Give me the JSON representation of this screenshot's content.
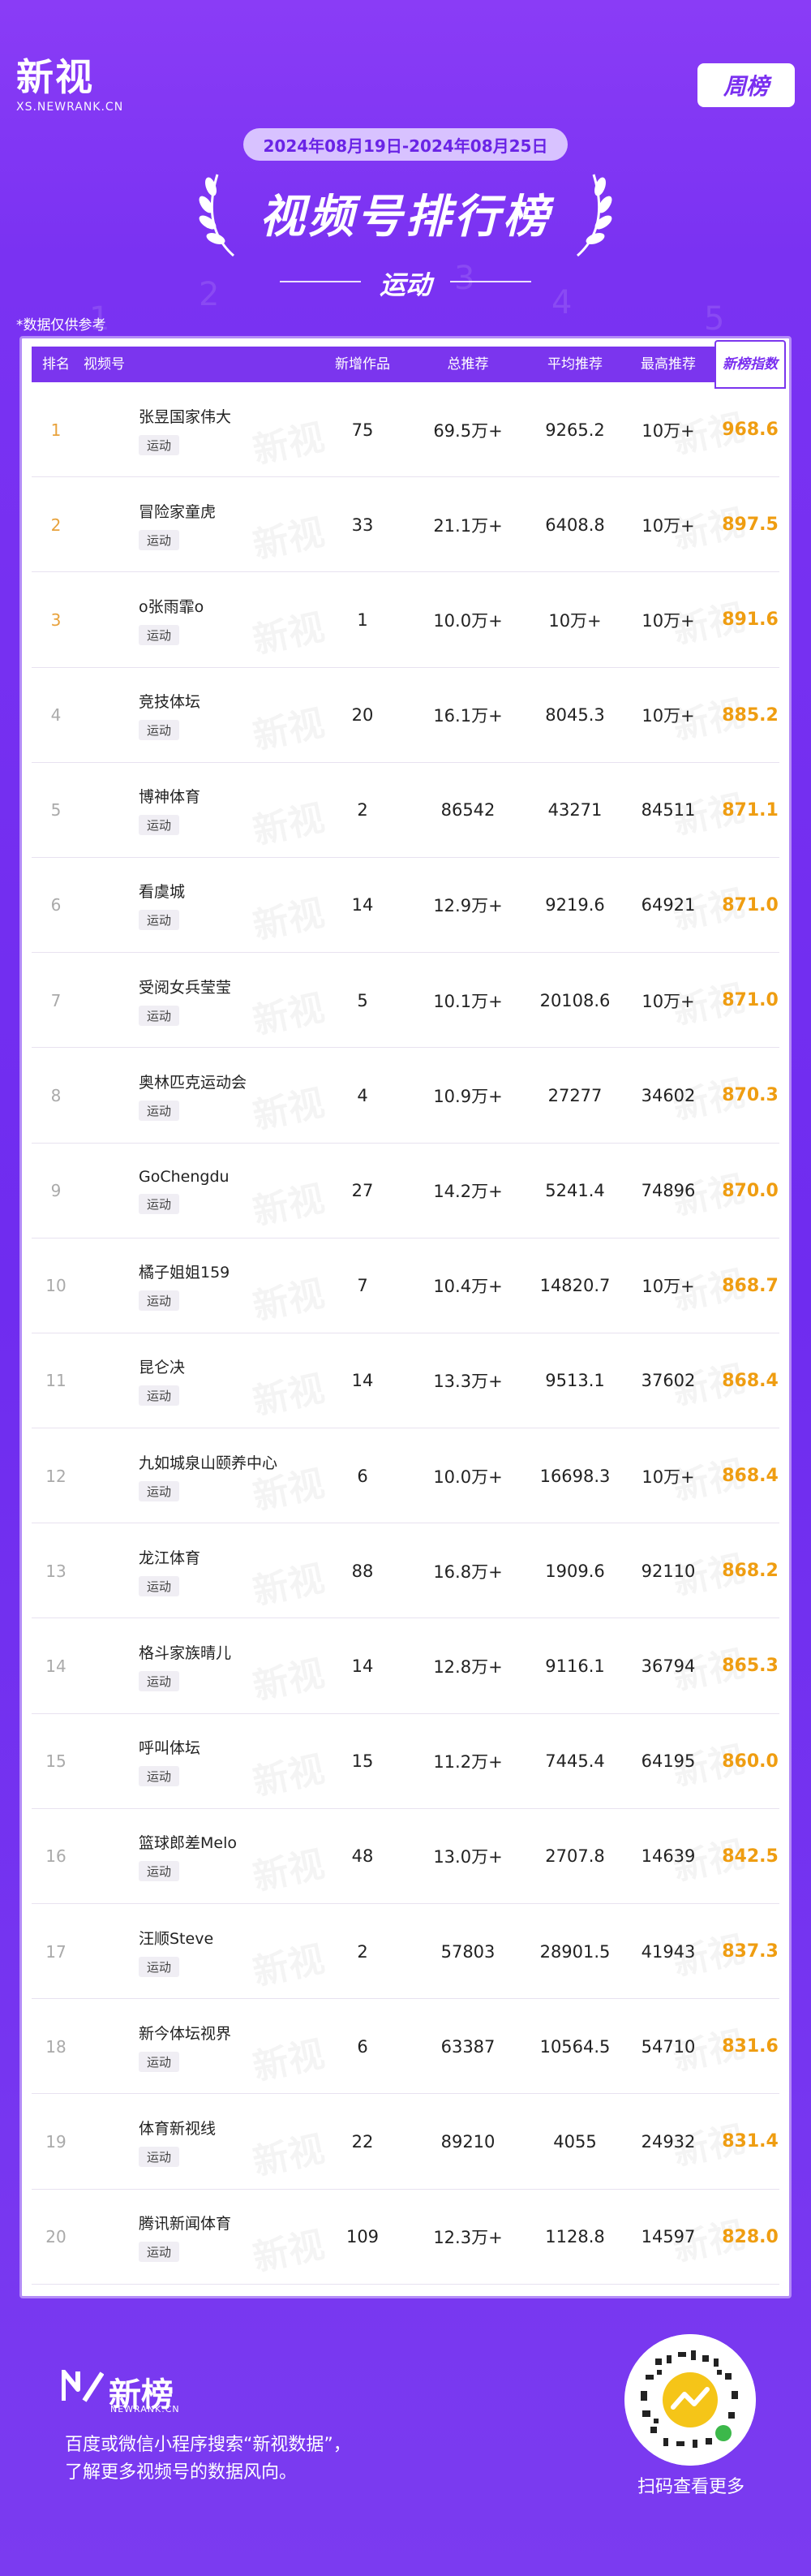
{
  "brand": {
    "logo_cn": "新视",
    "logo_en": "XS.NEWRANK.CN",
    "weekly_tag": "周榜"
  },
  "header": {
    "date_range": "2024年08月19日-2024年08月25日",
    "title": "视频号排行榜",
    "category": "运动",
    "note": "*数据仅供参考"
  },
  "table": {
    "columns": {
      "rank": "排名",
      "account": "视频号",
      "new_works": "新增作品",
      "total_rec": "总推荐",
      "avg_rec": "平均推荐",
      "max_rec": "最高推荐",
      "score": "新榜指数"
    },
    "watermark": "新视",
    "rows": [
      {
        "rank": "1",
        "name": "张昱国家伟大",
        "tag": "运动",
        "new": "75",
        "total": "69.5万+",
        "avg": "9265.2",
        "max": "10万+",
        "score": "968.6"
      },
      {
        "rank": "2",
        "name": "冒险家童虎",
        "tag": "运动",
        "new": "33",
        "total": "21.1万+",
        "avg": "6408.8",
        "max": "10万+",
        "score": "897.5"
      },
      {
        "rank": "3",
        "name": "o张雨霏o",
        "tag": "运动",
        "new": "1",
        "total": "10.0万+",
        "avg": "10万+",
        "max": "10万+",
        "score": "891.6"
      },
      {
        "rank": "4",
        "name": "竞技体坛",
        "tag": "运动",
        "new": "20",
        "total": "16.1万+",
        "avg": "8045.3",
        "max": "10万+",
        "score": "885.2"
      },
      {
        "rank": "5",
        "name": "博神体育",
        "tag": "运动",
        "new": "2",
        "total": "86542",
        "avg": "43271",
        "max": "84511",
        "score": "871.1"
      },
      {
        "rank": "6",
        "name": "看虞城",
        "tag": "运动",
        "new": "14",
        "total": "12.9万+",
        "avg": "9219.6",
        "max": "64921",
        "score": "871.0"
      },
      {
        "rank": "7",
        "name": "受阅女兵莹莹",
        "tag": "运动",
        "new": "5",
        "total": "10.1万+",
        "avg": "20108.6",
        "max": "10万+",
        "score": "871.0"
      },
      {
        "rank": "8",
        "name": "奥林匹克运动会",
        "tag": "运动",
        "new": "4",
        "total": "10.9万+",
        "avg": "27277",
        "max": "34602",
        "score": "870.3"
      },
      {
        "rank": "9",
        "name": "GoChengdu",
        "tag": "运动",
        "new": "27",
        "total": "14.2万+",
        "avg": "5241.4",
        "max": "74896",
        "score": "870.0"
      },
      {
        "rank": "10",
        "name": "橘子姐姐159",
        "tag": "运动",
        "new": "7",
        "total": "10.4万+",
        "avg": "14820.7",
        "max": "10万+",
        "score": "868.7"
      },
      {
        "rank": "11",
        "name": "昆仑决",
        "tag": "运动",
        "new": "14",
        "total": "13.3万+",
        "avg": "9513.1",
        "max": "37602",
        "score": "868.4"
      },
      {
        "rank": "12",
        "name": "九如城泉山颐养中心",
        "tag": "运动",
        "new": "6",
        "total": "10.0万+",
        "avg": "16698.3",
        "max": "10万+",
        "score": "868.4"
      },
      {
        "rank": "13",
        "name": "龙江体育",
        "tag": "运动",
        "new": "88",
        "total": "16.8万+",
        "avg": "1909.6",
        "max": "92110",
        "score": "868.2"
      },
      {
        "rank": "14",
        "name": "格斗家族晴儿",
        "tag": "运动",
        "new": "14",
        "total": "12.8万+",
        "avg": "9116.1",
        "max": "36794",
        "score": "865.3"
      },
      {
        "rank": "15",
        "name": "呼叫体坛",
        "tag": "运动",
        "new": "15",
        "total": "11.2万+",
        "avg": "7445.4",
        "max": "64195",
        "score": "860.0"
      },
      {
        "rank": "16",
        "name": "篮球郎差Melo",
        "tag": "运动",
        "new": "48",
        "total": "13.0万+",
        "avg": "2707.8",
        "max": "14639",
        "score": "842.5"
      },
      {
        "rank": "17",
        "name": "汪顺Steve",
        "tag": "运动",
        "new": "2",
        "total": "57803",
        "avg": "28901.5",
        "max": "41943",
        "score": "837.3"
      },
      {
        "rank": "18",
        "name": "新今体坛视界",
        "tag": "运动",
        "new": "6",
        "total": "63387",
        "avg": "10564.5",
        "max": "54710",
        "score": "831.6"
      },
      {
        "rank": "19",
        "name": "体育新视线",
        "tag": "运动",
        "new": "22",
        "total": "89210",
        "avg": "4055",
        "max": "24932",
        "score": "831.4"
      },
      {
        "rank": "20",
        "name": "腾讯新闻体育",
        "tag": "运动",
        "new": "109",
        "total": "12.3万+",
        "avg": "1128.8",
        "max": "14597",
        "score": "828.0"
      }
    ]
  },
  "footer": {
    "logo_cn": "新榜",
    "logo_en": "NEWRANK.CN",
    "line1": "百度或微信小程序搜索“新视数据”，",
    "line2": "了解更多视频号的数据风向。",
    "qr_caption": "扫码查看更多"
  },
  "colors": {
    "bg": "#7a2ff0",
    "header_row": "#7b35ee",
    "score": "#ef9d11",
    "top_rank": "#e8a23c"
  }
}
